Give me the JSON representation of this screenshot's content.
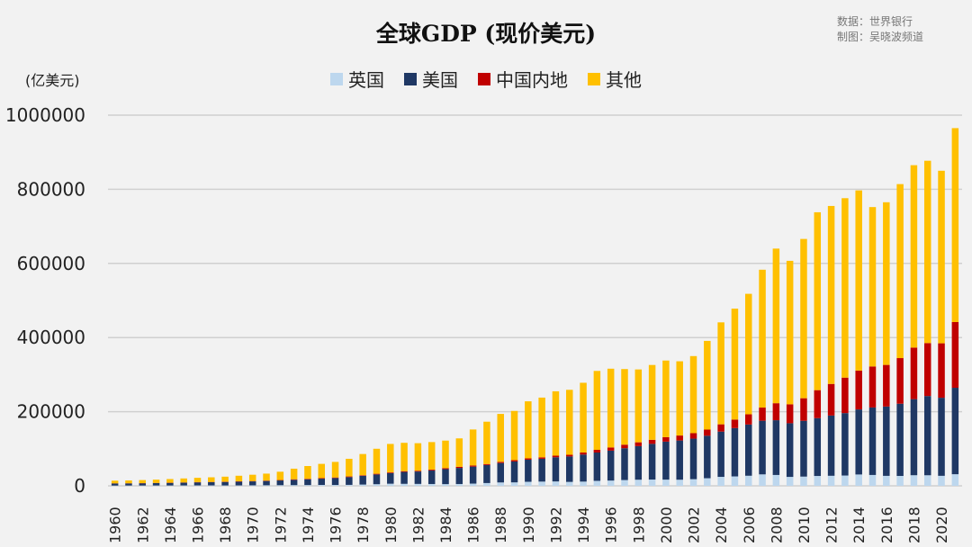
{
  "chart_data": {
    "type": "bar",
    "stacked": true,
    "title": "全球GDP (现价美元)",
    "source_note": [
      "数据：世界银行",
      "制图：吴晓波频道"
    ],
    "ylabel": "(亿美元)",
    "ylim": [
      0,
      1000000
    ],
    "yticks": [
      0,
      200000,
      400000,
      600000,
      800000,
      1000000
    ],
    "grid": true,
    "legend_position": "top",
    "categories": [
      1960,
      1961,
      1962,
      1963,
      1964,
      1965,
      1966,
      1967,
      1968,
      1969,
      1970,
      1971,
      1972,
      1973,
      1974,
      1975,
      1976,
      1977,
      1978,
      1979,
      1980,
      1981,
      1982,
      1983,
      1984,
      1985,
      1986,
      1987,
      1988,
      1989,
      1990,
      1991,
      1992,
      1993,
      1994,
      1995,
      1996,
      1997,
      1998,
      1999,
      2000,
      2001,
      2002,
      2003,
      2004,
      2005,
      2006,
      2007,
      2008,
      2009,
      2010,
      2011,
      2012,
      2013,
      2014,
      2015,
      2016,
      2017,
      2018,
      2019,
      2020,
      2021
    ],
    "xtick_labels": [
      "1960",
      "1962",
      "1964",
      "1966",
      "1968",
      "1970",
      "1972",
      "1974",
      "1976",
      "1978",
      "1980",
      "1982",
      "1984",
      "1986",
      "1988",
      "1990",
      "1992",
      "1994",
      "1996",
      "1998",
      "2000",
      "2002",
      "2004",
      "2006",
      "2008",
      "2010",
      "2012",
      "2014",
      "2016",
      "2018",
      "2020"
    ],
    "series": [
      {
        "name": "英国",
        "color": "#bdd7ee",
        "values": [
          700,
          800,
          800,
          900,
          900,
          1000,
          1100,
          1100,
          1000,
          1100,
          1300,
          1500,
          1700,
          1900,
          2100,
          2400,
          2300,
          2600,
          3400,
          4400,
          5700,
          5400,
          5200,
          4900,
          4600,
          4900,
          6000,
          7500,
          9100,
          9300,
          10900,
          11400,
          11800,
          10600,
          11400,
          13400,
          14200,
          15600,
          16500,
          16900,
          16700,
          16500,
          17900,
          20500,
          24200,
          25400,
          27200,
          30900,
          29300,
          24100,
          24900,
          26600,
          27100,
          27800,
          30600,
          29300,
          26900,
          26700,
          28600,
          28500,
          27000,
          31300
        ]
      },
      {
        "name": "美国",
        "color": "#1f3864",
        "values": [
          5400,
          5600,
          6000,
          6400,
          6900,
          7400,
          8200,
          8600,
          9400,
          10200,
          10700,
          11600,
          12800,
          14300,
          15500,
          16900,
          18700,
          20900,
          23600,
          26300,
          28600,
          32100,
          33400,
          36300,
          40400,
          43400,
          45800,
          48600,
          52400,
          56400,
          59600,
          61600,
          65200,
          68600,
          72900,
          76400,
          80700,
          85800,
          90600,
          96300,
          102500,
          105800,
          109400,
          114600,
          122100,
          130400,
          138200,
          144700,
          147700,
          144800,
          150500,
          156000,
          162500,
          168400,
          175500,
          182100,
          187000,
          194800,
          205300,
          213800,
          210600,
          233200
        ]
      },
      {
        "name": "中国内地",
        "color": "#c00000",
        "values": [
          600,
          500,
          500,
          500,
          600,
          700,
          800,
          700,
          700,
          800,
          900,
          1000,
          1100,
          1400,
          1400,
          1600,
          1500,
          1800,
          1500,
          1800,
          1900,
          2000,
          2100,
          2300,
          2600,
          3100,
          3000,
          2700,
          3100,
          3500,
          3600,
          3800,
          4300,
          4500,
          5600,
          7300,
          8600,
          9600,
          10300,
          10900,
          12100,
          13400,
          14700,
          16600,
          19600,
          22900,
          27500,
          35500,
          45900,
          51000,
          60900,
          75500,
          85300,
          95700,
          104800,
          110600,
          112300,
          123100,
          139000,
          142800,
          146900,
          177300
        ]
      },
      {
        "name": "其他",
        "color": "#ffc000",
        "values": [
          7200,
          7600,
          8200,
          8900,
          9900,
          10800,
          11500,
          12600,
          13600,
          15100,
          17000,
          18800,
          22400,
          28600,
          34400,
          38300,
          42000,
          47600,
          57300,
          67500,
          76800,
          76500,
          74300,
          74500,
          74400,
          76600,
          97200,
          114200,
          129400,
          132800,
          153900,
          161200,
          173700,
          175300,
          188100,
          212900,
          212500,
          204000,
          196600,
          201900,
          206700,
          200300,
          208000,
          239300,
          275100,
          299300,
          325100,
          371900,
          417100,
          387100,
          429700,
          479900,
          480100,
          484100,
          486100,
          430000,
          438800,
          469400,
          492100,
          491900,
          465500,
          523200
        ]
      }
    ]
  }
}
